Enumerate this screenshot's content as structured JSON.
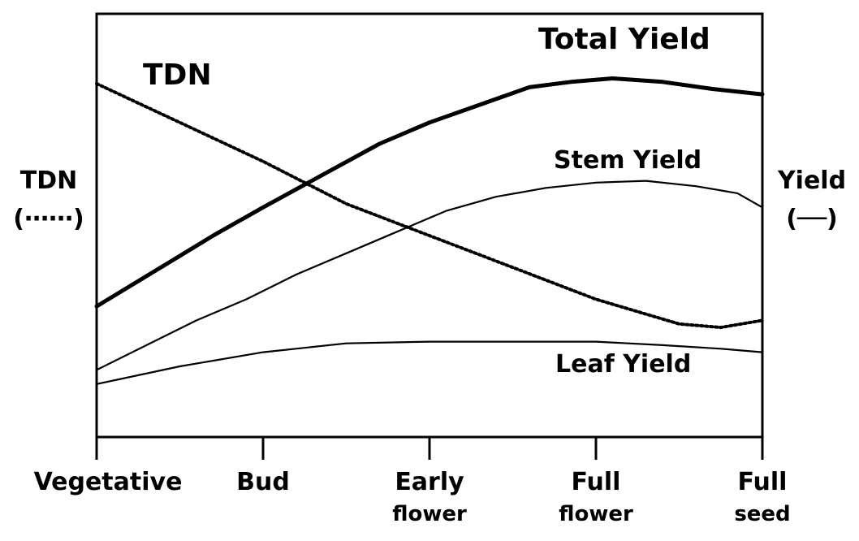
{
  "chart_data": {
    "type": "line",
    "title": "",
    "xlabel": "",
    "ylabel_left": "TDN",
    "ylabel_left_symbol": "(⋯⋯)",
    "ylabel_right": "Yield",
    "ylabel_right_symbol": "(──)",
    "x_ticks": [
      {
        "lines": [
          "Vegetative"
        ]
      },
      {
        "lines": [
          "Bud"
        ]
      },
      {
        "lines": [
          "Early",
          "flower"
        ]
      },
      {
        "lines": [
          "Full",
          "flower"
        ]
      },
      {
        "lines": [
          "Full",
          "seed"
        ]
      }
    ],
    "xlim": [
      0,
      4
    ],
    "ylim": [
      0,
      100
    ],
    "grid": false,
    "series": [
      {
        "name": "Total Yield",
        "style": "thick-solid",
        "points": [
          [
            0,
            37
          ],
          [
            0.35,
            47
          ],
          [
            0.7,
            57
          ],
          [
            1,
            65
          ],
          [
            1.35,
            74
          ],
          [
            1.7,
            83
          ],
          [
            2,
            89
          ],
          [
            2.3,
            94
          ],
          [
            2.6,
            99
          ],
          [
            2.85,
            100.5
          ],
          [
            3.1,
            101.5
          ],
          [
            3.4,
            100.5
          ],
          [
            3.7,
            98.5
          ],
          [
            4,
            97
          ]
        ]
      },
      {
        "name": "Stem Yield",
        "style": "thin-solid",
        "points": [
          [
            0,
            19
          ],
          [
            0.3,
            26
          ],
          [
            0.6,
            33
          ],
          [
            0.9,
            39
          ],
          [
            1.2,
            46
          ],
          [
            1.5,
            52
          ],
          [
            1.8,
            58
          ],
          [
            2.1,
            64
          ],
          [
            2.4,
            68
          ],
          [
            2.7,
            70.5
          ],
          [
            3,
            72
          ],
          [
            3.3,
            72.5
          ],
          [
            3.6,
            71
          ],
          [
            3.85,
            69
          ],
          [
            4,
            65
          ]
        ]
      },
      {
        "name": "Leaf Yield",
        "style": "thin-solid",
        "points": [
          [
            0,
            15
          ],
          [
            0.5,
            20
          ],
          [
            1,
            24
          ],
          [
            1.5,
            26.5
          ],
          [
            2,
            27
          ],
          [
            2.5,
            27
          ],
          [
            3,
            27
          ],
          [
            3.4,
            26
          ],
          [
            3.75,
            25
          ],
          [
            4,
            24
          ]
        ]
      },
      {
        "name": "TDN",
        "style": "dotted",
        "points": [
          [
            0,
            100
          ],
          [
            0.5,
            89
          ],
          [
            1,
            78
          ],
          [
            1.5,
            66
          ],
          [
            2,
            57
          ],
          [
            2.5,
            48
          ],
          [
            3,
            39
          ],
          [
            3.5,
            32
          ],
          [
            3.75,
            31
          ],
          [
            4,
            33
          ]
        ]
      }
    ],
    "annotations": {
      "total": "Total Yield",
      "tdn": "TDN",
      "stem": "Stem Yield",
      "leaf": "Leaf Yield"
    }
  }
}
